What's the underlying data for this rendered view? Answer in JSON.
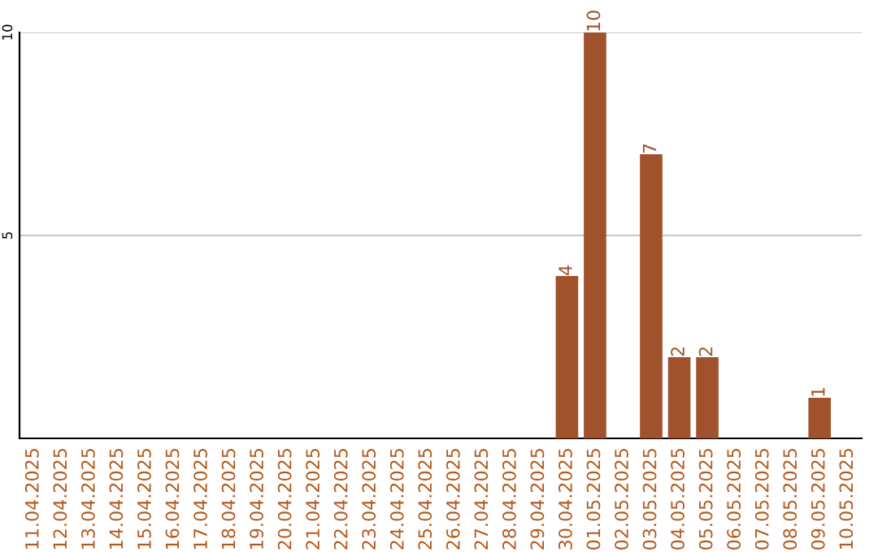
{
  "chart_data": {
    "type": "bar",
    "categories": [
      "11.04.2025",
      "12.04.2025",
      "13.04.2025",
      "14.04.2025",
      "15.04.2025",
      "16.04.2025",
      "17.04.2025",
      "18.04.2025",
      "19.04.2025",
      "20.04.2025",
      "21.04.2025",
      "22.04.2025",
      "23.04.2025",
      "24.04.2025",
      "25.04.2025",
      "26.04.2025",
      "27.04.2025",
      "28.04.2025",
      "29.04.2025",
      "30.04.2025",
      "01.05.2025",
      "02.05.2025",
      "03.05.2025",
      "04.05.2025",
      "05.05.2025",
      "06.05.2025",
      "07.05.2025",
      "08.05.2025",
      "09.05.2025",
      "10.05.2025"
    ],
    "values": [
      0,
      0,
      0,
      0,
      0,
      0,
      0,
      0,
      0,
      0,
      0,
      0,
      0,
      0,
      0,
      0,
      0,
      0,
      0,
      4,
      10,
      0,
      7,
      2,
      2,
      0,
      0,
      0,
      1,
      0
    ],
    "value_labels": [
      null,
      null,
      null,
      null,
      null,
      null,
      null,
      null,
      null,
      null,
      null,
      null,
      null,
      null,
      null,
      null,
      null,
      null,
      null,
      "4",
      "10",
      null,
      "7",
      "2",
      "2",
      null,
      null,
      null,
      "1",
      null
    ],
    "color": "#a0522d",
    "ylim": [
      0,
      10
    ],
    "yticks": [
      5,
      10
    ],
    "grid": "y"
  }
}
